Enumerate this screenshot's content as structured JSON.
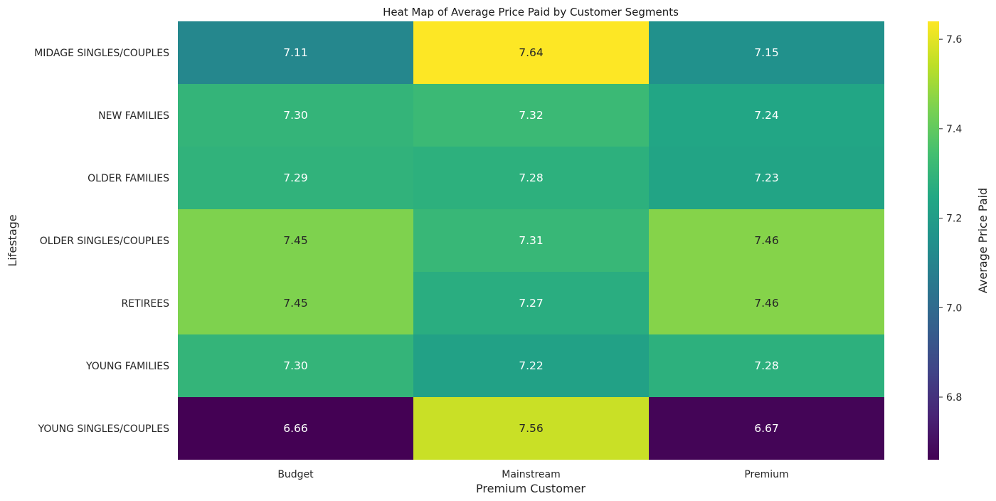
{
  "chart_data": {
    "type": "heatmap",
    "title": "Heat Map of Average Price Paid by Customer Segments",
    "xlabel": "Premium Customer",
    "ylabel": "Lifestage",
    "x_categories": [
      "Budget",
      "Mainstream",
      "Premium"
    ],
    "y_categories": [
      "MIDAGE SINGLES/COUPLES",
      "NEW FAMILIES",
      "OLDER FAMILIES",
      "OLDER SINGLES/COUPLES",
      "RETIREES",
      "YOUNG FAMILIES",
      "YOUNG SINGLES/COUPLES"
    ],
    "values": [
      [
        7.11,
        7.64,
        7.15
      ],
      [
        7.3,
        7.32,
        7.24
      ],
      [
        7.29,
        7.28,
        7.23
      ],
      [
        7.45,
        7.31,
        7.46
      ],
      [
        7.45,
        7.27,
        7.46
      ],
      [
        7.3,
        7.22,
        7.28
      ],
      [
        6.66,
        7.56,
        6.67
      ]
    ],
    "value_labels": [
      [
        "7.11",
        "7.64",
        "7.15"
      ],
      [
        "7.30",
        "7.32",
        "7.24"
      ],
      [
        "7.29",
        "7.28",
        "7.23"
      ],
      [
        "7.45",
        "7.31",
        "7.46"
      ],
      [
        "7.45",
        "7.27",
        "7.46"
      ],
      [
        "7.30",
        "7.22",
        "7.28"
      ],
      [
        "6.66",
        "7.56",
        "6.67"
      ]
    ],
    "colormap": "viridis",
    "vmin": 6.66,
    "vmax": 7.64,
    "colorbar": {
      "label": "Average Price Paid",
      "ticks": [
        6.8,
        7.0,
        7.2,
        7.4,
        7.6
      ],
      "tick_labels": [
        "6.8",
        "7.0",
        "7.2",
        "7.4",
        "7.6"
      ]
    },
    "grid": false
  }
}
